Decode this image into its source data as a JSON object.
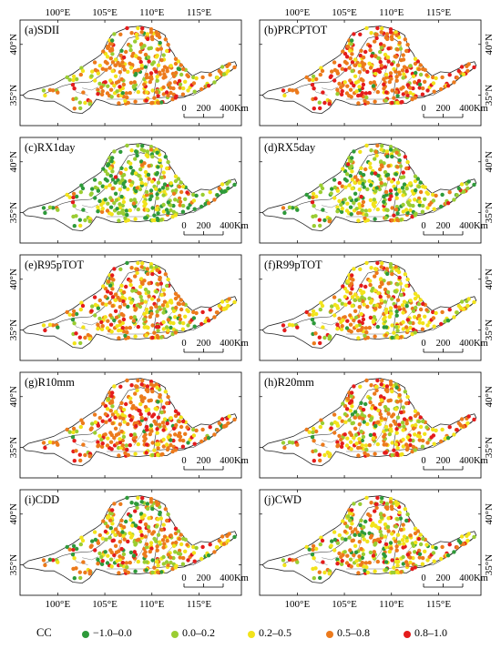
{
  "axes": {
    "x_ticks": [
      "100°E",
      "105°E",
      "110°E",
      "115°E"
    ],
    "y_ticks": [
      "40°N",
      "35°N"
    ]
  },
  "scale_bar": {
    "labels": [
      "0",
      "200",
      "400Km"
    ]
  },
  "colors": {
    "class_1": "#2e9a3a",
    "class_2": "#9acd32",
    "class_3": "#f2e31b",
    "class_4": "#ec7a1c",
    "class_5": "#e41c1c"
  },
  "panels": [
    {
      "title": "(a)SDII",
      "weights": [
        0.06,
        0.13,
        0.23,
        0.5,
        0.08
      ]
    },
    {
      "title": "(b)PRCPTOT",
      "weights": [
        0.02,
        0.07,
        0.13,
        0.48,
        0.3
      ]
    },
    {
      "title": "(c)RX1day",
      "weights": [
        0.33,
        0.3,
        0.25,
        0.1,
        0.02
      ]
    },
    {
      "title": "(d)RX5day",
      "weights": [
        0.22,
        0.3,
        0.27,
        0.14,
        0.07
      ]
    },
    {
      "title": "(e)R95pTOT",
      "weights": [
        0.07,
        0.15,
        0.3,
        0.35,
        0.13
      ]
    },
    {
      "title": "(f)R99pTOT",
      "weights": [
        0.08,
        0.2,
        0.33,
        0.24,
        0.15
      ]
    },
    {
      "title": "(g)R10mm",
      "weights": [
        0.04,
        0.09,
        0.16,
        0.47,
        0.24
      ]
    },
    {
      "title": "(h)R20mm",
      "weights": [
        0.04,
        0.13,
        0.28,
        0.42,
        0.13
      ]
    },
    {
      "title": "(i)CDD",
      "weights": [
        0.12,
        0.18,
        0.25,
        0.33,
        0.12
      ]
    },
    {
      "title": "(j)CWD",
      "weights": [
        0.1,
        0.2,
        0.3,
        0.28,
        0.12
      ]
    }
  ],
  "legend": {
    "label": "CC",
    "items": [
      {
        "text": "−1.0–0.0",
        "color": "#2e9a3a"
      },
      {
        "text": "0.0–0.2",
        "color": "#9acd32"
      },
      {
        "text": "0.2–0.5",
        "color": "#f2e31b"
      },
      {
        "text": "0.5–0.8",
        "color": "#ec7a1c"
      },
      {
        "text": "0.8–1.0",
        "color": "#e41c1c"
      }
    ]
  }
}
